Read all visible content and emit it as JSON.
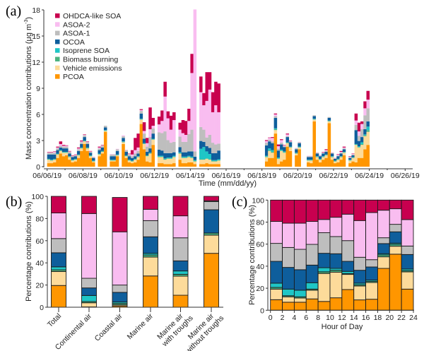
{
  "categories_colors": {
    "OHDCA-like SOA": "#C8004F",
    "ASOA-2": "#F9BDF0",
    "ASOA-1": "#BEBEBE",
    "OCOA": "#0E5E9C",
    "Isoprene SOA": "#1FC6C6",
    "Biomass burning": "#4DB380",
    "Vehicle emissions": "#FDDB9A",
    "PCOA": "#FF9600"
  },
  "chart_data": [
    {
      "panel": "(a)",
      "type": "area",
      "title": "",
      "xlabel": "Time (mm/dd/yy)",
      "ylabel": "Mass concentration contributions (μg m⁻³)",
      "ylim": [
        0,
        18
      ],
      "yticks": [
        "0",
        "3",
        "6",
        "9",
        "12",
        "15",
        "18"
      ],
      "xticks": [
        "06/06/19",
        "06/08/19",
        "06/10/19",
        "06/12/19",
        "06/14/19",
        "06/16/19",
        "06/18/19",
        "06/20/19",
        "06/22/19",
        "06/24/19",
        "06/26/19"
      ],
      "x_unit": "days since 06/06/19 00:00, 4-hour resolution, null = no data",
      "legend": [
        "OHDCA-like SOA",
        "ASOA-2",
        "ASOA-1",
        "OCOA",
        "Isoprene SOA",
        "Biomass burning",
        "Vehicle emissions",
        "PCOA"
      ],
      "legend_position": "top-left",
      "stack_order_bottom_to_top": [
        "PCOA",
        "Vehicle emissions",
        "Biomass burning",
        "Isoprene SOA",
        "OCOA",
        "ASOA-1",
        "ASOA-2",
        "OHDCA-like SOA"
      ],
      "x_start_day": 0,
      "x_step_days": 0.1667,
      "points": [
        [
          0.4,
          0.4,
          0.05,
          0.05,
          0.5,
          0.2,
          0.05,
          0.05
        ],
        [
          0.4,
          0.3,
          0.05,
          0.05,
          0.6,
          0.2,
          0.05,
          0.05
        ],
        [
          0.5,
          0.3,
          0.05,
          0.05,
          0.5,
          0.2,
          0.1,
          0.05
        ],
        [
          1.0,
          0.4,
          0.05,
          0.05,
          0.4,
          0.2,
          0.1,
          0.1
        ],
        [
          1.5,
          0.3,
          0.05,
          0.05,
          0.3,
          0.2,
          0.2,
          0.3
        ],
        [
          1.2,
          0.4,
          0.05,
          0.05,
          0.4,
          0.2,
          0.1,
          0.1
        ],
        [
          1.3,
          0.3,
          0.05,
          0.05,
          0.4,
          0.2,
          0.1,
          0.05
        ],
        [
          0.8,
          0.3,
          0.05,
          0.05,
          0.3,
          0.2,
          0.05,
          0.05
        ],
        [
          0.5,
          0.2,
          0.05,
          0.05,
          0.3,
          0.1,
          0.05,
          0.05
        ],
        [
          0.6,
          0.2,
          0.05,
          0.05,
          0.3,
          0.1,
          0.05,
          0.05
        ],
        [
          1.0,
          0.3,
          0.05,
          0.05,
          0.4,
          0.2,
          0.1,
          0.1
        ],
        [
          1.8,
          0.3,
          0.05,
          0.05,
          0.4,
          0.2,
          0.1,
          0.1
        ],
        [
          2.6,
          0.3,
          0.05,
          0.05,
          0.4,
          0.2,
          0.05,
          0.05
        ],
        [
          1.8,
          0.3,
          0.05,
          0.05,
          0.4,
          0.2,
          0.05,
          0.05
        ],
        [
          1.0,
          0.2,
          0.05,
          0.05,
          0.3,
          0.1,
          0.05,
          0.05
        ],
        [
          0.5,
          0.1,
          0.05,
          0.05,
          0.3,
          0.1,
          0.05,
          0.0
        ],
        null,
        [
          1.2,
          0.2,
          0.05,
          0.05,
          0.4,
          0.2,
          0.1,
          0.1
        ],
        [
          1.5,
          0.2,
          0.05,
          0.05,
          0.4,
          0.2,
          0.05,
          0.05
        ],
        [
          4.0,
          0.1,
          0.05,
          0.05,
          0.3,
          0.2,
          0.0,
          0.0
        ],
        null,
        [
          0.6,
          0.1,
          0.05,
          0.05,
          0.4,
          0.2,
          0.05,
          0.0
        ],
        [
          0.6,
          0.1,
          0.05,
          0.05,
          0.4,
          0.2,
          0.05,
          0.0
        ],
        [
          1.2,
          0.1,
          0.05,
          0.05,
          0.4,
          0.2,
          0.05,
          0.0
        ],
        null,
        [
          2.6,
          0.2,
          0.05,
          0.05,
          0.4,
          0.2,
          0.1,
          0.0
        ],
        [
          1.0,
          0.2,
          0.05,
          0.05,
          0.4,
          0.2,
          0.05,
          0.0
        ],
        [
          0.5,
          0.2,
          0.05,
          0.05,
          0.4,
          0.2,
          0.05,
          0.05
        ],
        [
          0.4,
          0.2,
          0.05,
          0.05,
          0.3,
          0.2,
          0.2,
          0.5
        ],
        [
          0.5,
          0.3,
          0.05,
          0.05,
          0.3,
          0.3,
          0.4,
          1.4
        ],
        [
          0.8,
          0.3,
          0.05,
          0.05,
          0.3,
          0.3,
          0.4,
          1.6
        ],
        [
          4.9,
          0.5,
          0.05,
          0.05,
          0.6,
          0.3,
          0.1,
          0.1
        ],
        [
          2.0,
          0.6,
          0.05,
          0.05,
          0.5,
          0.6,
          0.3,
          1.0
        ],
        [
          0.6,
          0.6,
          0.05,
          0.05,
          0.4,
          0.6,
          0.4,
          0.6
        ],
        [
          0.5,
          1.0,
          0.05,
          0.05,
          0.5,
          1.3,
          0.9,
          2.5
        ],
        [
          2.5,
          0.6,
          0.05,
          0.05,
          0.6,
          0.6,
          0.3,
          0.9
        ],
        null,
        [
          0.4,
          0.7,
          0.05,
          0.1,
          0.7,
          2.0,
          0.9,
          0.9
        ],
        [
          0.4,
          0.7,
          0.05,
          0.1,
          0.6,
          2.0,
          1.4,
          1.2
        ],
        [
          0.3,
          0.5,
          0.05,
          0.1,
          0.6,
          2.5,
          4.0,
          1.7
        ],
        [
          0.3,
          0.6,
          0.05,
          0.1,
          0.5,
          1.5,
          2.5,
          0.8
        ],
        [
          0.3,
          0.6,
          0.05,
          0.1,
          0.5,
          1.2,
          1.5,
          1.6
        ],
        [
          0.4,
          0.7,
          0.05,
          0.1,
          0.4,
          1.2,
          2.5,
          0.9
        ],
        null,
        [
          0.8,
          0.7,
          0.05,
          0.1,
          0.6,
          1.2,
          0.8,
          0.8
        ],
        [
          0.4,
          0.6,
          0.05,
          0.1,
          0.5,
          1.2,
          1.0,
          1.5
        ],
        [
          0.4,
          0.6,
          0.05,
          0.1,
          0.5,
          1.2,
          0.8,
          1.6
        ],
        [
          0.5,
          0.6,
          0.05,
          0.1,
          0.5,
          2.0,
          1.5,
          1.4
        ],
        [
          0.5,
          0.5,
          0.05,
          0.1,
          0.6,
          2.5,
          6.5,
          2.2
        ],
        [
          0.3,
          0.3,
          0.05,
          0.1,
          0.4,
          0.6,
          16.3,
          0.0
        ],
        null,
        [
          0.3,
          0.5,
          0.05,
          1.2,
          0.9,
          1.6,
          4.0,
          1.8
        ],
        [
          0.3,
          0.5,
          0.05,
          1.4,
          0.6,
          1.4,
          2.8,
          1.4
        ],
        [
          0.4,
          0.5,
          0.05,
          0.8,
          0.6,
          1.0,
          4.2,
          3.3
        ],
        [
          0.3,
          0.5,
          0.05,
          0.6,
          0.7,
          1.5,
          5.2,
          2.0
        ],
        [
          0.3,
          0.3,
          0.05,
          0.1,
          0.8,
          1.2,
          3.5,
          2.3
        ],
        [
          0.3,
          0.3,
          0.05,
          0.1,
          0.8,
          1.0,
          4.5,
          2.7
        ],
        [
          0.3,
          0.4,
          0.05,
          0.1,
          1.0,
          0.8,
          3.6,
          3.3
        ],
        null,
        null,
        null,
        null,
        null,
        null,
        null,
        null,
        null,
        null,
        null,
        null,
        null,
        null,
        null,
        [
          0.6,
          0.5,
          0.05,
          0.1,
          1.2,
          0.3,
          0.2,
          0.1
        ],
        [
          1.0,
          0.8,
          0.1,
          0.2,
          0.8,
          0.2,
          0.2,
          0.05
        ],
        [
          1.0,
          0.6,
          0.1,
          0.2,
          0.8,
          0.2,
          0.4,
          0.1
        ],
        [
          3.8,
          0.4,
          0.1,
          0.1,
          1.2,
          0.2,
          0.2,
          0.1
        ],
        [
          0.3,
          0.6,
          0.05,
          0.1,
          0.8,
          0.2,
          0.3,
          0.2
        ],
        [
          0.6,
          1.2,
          0.05,
          0.1,
          0.6,
          0.2,
          0.3,
          0.1
        ],
        [
          0.8,
          0.8,
          0.05,
          0.1,
          0.5,
          0.1,
          0.1,
          0.05
        ],
        [
          2.3,
          0.4,
          0.05,
          0.05,
          0.6,
          0.1,
          0.2,
          0.1
        ],
        [
          1.8,
          0.4,
          0.05,
          0.05,
          0.5,
          0.1,
          0.05,
          0.05
        ],
        null,
        [
          1.3,
          0.2,
          0.05,
          0.05,
          0.4,
          0.1,
          0.05,
          0.0
        ],
        [
          2.0,
          0.2,
          0.05,
          0.05,
          0.4,
          0.1,
          0.05,
          0.0
        ],
        null,
        null,
        [
          0.5,
          0.2,
          0.05,
          0.05,
          0.3,
          0.1,
          0.05,
          0.0
        ],
        [
          0.4,
          0.3,
          0.05,
          0.05,
          0.3,
          0.1,
          0.05,
          0.0
        ],
        [
          5.2,
          0.2,
          0.05,
          0.05,
          0.3,
          0.1,
          0.0,
          0.0
        ],
        [
          0.8,
          0.3,
          0.05,
          0.05,
          0.3,
          0.1,
          0.05,
          0.0
        ],
        [
          0.5,
          0.3,
          0.05,
          0.05,
          0.3,
          0.1,
          0.05,
          0.0
        ],
        [
          0.8,
          0.3,
          0.05,
          0.05,
          0.3,
          0.1,
          0.05,
          0.05
        ],
        [
          1.0,
          0.3,
          0.05,
          0.05,
          0.3,
          0.1,
          0.1,
          0.1
        ],
        [
          5.0,
          0.2,
          0.05,
          0.05,
          0.3,
          0.1,
          0.0,
          0.0
        ],
        [
          0.8,
          0.3,
          0.05,
          0.05,
          0.3,
          0.1,
          0.05,
          0.0
        ],
        [
          0.4,
          0.2,
          0.05,
          0.05,
          0.2,
          0.1,
          0.05,
          0.0
        ],
        [
          0.5,
          0.3,
          0.05,
          0.05,
          0.3,
          0.1,
          0.1,
          0.05
        ],
        [
          0.8,
          0.3,
          0.05,
          0.05,
          0.3,
          0.1,
          0.1,
          0.1
        ],
        [
          1.3,
          0.3,
          0.05,
          0.05,
          0.3,
          0.1,
          0.1,
          0.1
        ],
        null,
        [
          0.4,
          0.3,
          0.05,
          0.05,
          0.2,
          0.1,
          0.05,
          0.05
        ],
        [
          0.6,
          0.4,
          0.05,
          0.05,
          0.2,
          0.1,
          0.05,
          0.05
        ],
        [
          0.5,
          2.0,
          0.05,
          0.05,
          1.6,
          0.6,
          0.5,
          0.8
        ],
        [
          1.0,
          1.2,
          0.05,
          0.1,
          0.6,
          0.6,
          0.5,
          1.0
        ],
        [
          1.0,
          1.5,
          0.1,
          0.2,
          0.6,
          0.9,
          0.6,
          0.3
        ],
        [
          2.0,
          1.5,
          0.1,
          0.1,
          0.6,
          1.6,
          0.8,
          0.8
        ],
        [
          2.5,
          1.5,
          0.2,
          0.4,
          0.6,
          1.5,
          1.0,
          1.0
        ]
      ]
    },
    {
      "panel": "(b)",
      "type": "bar",
      "stacked": true,
      "ylabel": "Percentage contributions (%)",
      "xlabel": "",
      "ylim": [
        0,
        100
      ],
      "yticks": [
        "0",
        "20",
        "40",
        "60",
        "80",
        "100"
      ],
      "categories": [
        "Total",
        "Continental air",
        "Coastal air",
        "Marine air",
        "Marine air with troughs",
        "Marine air without troughs"
      ],
      "series": [
        {
          "name": "PCOA",
          "values": [
            19.6,
            0.3,
            1.1,
            28.2,
            10.8,
            48.6
          ]
        },
        {
          "name": "Vehicle emissions",
          "values": [
            12.6,
            3.7,
            1.0,
            17.0,
            17.2,
            16.4
          ]
        },
        {
          "name": "Biomass burning",
          "values": [
            1.5,
            1.1,
            1.3,
            1.9,
            1.7,
            1.9
          ]
        },
        {
          "name": "Isoprene SOA",
          "values": [
            2.7,
            5.5,
            1.3,
            1.5,
            3.0,
            0.0
          ]
        },
        {
          "name": "OCOA",
          "values": [
            12.7,
            6.8,
            8.7,
            14.9,
            9.1,
            21.0
          ]
        },
        {
          "name": "ASOA-1",
          "values": [
            12.8,
            8.7,
            6.6,
            14.6,
            20.8,
            7.4
          ]
        },
        {
          "name": "ASOA-2",
          "values": [
            23.1,
            58.4,
            48.0,
            10.2,
            19.8,
            0.7
          ]
        },
        {
          "name": "OHDCA-like SOA",
          "values": [
            15.0,
            15.5,
            31.0,
            11.7,
            17.6,
            4.0
          ]
        }
      ]
    },
    {
      "panel": "(c)",
      "type": "bar",
      "stacked": true,
      "ylabel": "Percentage contributions (%)",
      "xlabel": "Hour of Day",
      "ylim": [
        0,
        100
      ],
      "xlim": [
        0,
        24
      ],
      "yticks": [
        "0",
        "20",
        "40",
        "60",
        "80",
        "100"
      ],
      "xticks": [
        "0",
        "2",
        "4",
        "6",
        "8",
        "10",
        "12",
        "14",
        "16",
        "18",
        "20",
        "22",
        "24"
      ],
      "categories": [
        "0-2",
        "2-4",
        "4-6",
        "6-8",
        "8-10",
        "10-12",
        "12-14",
        "14-16",
        "16-18",
        "18-20",
        "20-22",
        "22-24"
      ],
      "series": [
        {
          "name": "PCOA",
          "values": [
            9.6,
            7.3,
            7.3,
            10.3,
            8.0,
            11.3,
            18.8,
            9.4,
            10.0,
            38.0,
            50.9,
            19.2
          ]
        },
        {
          "name": "Vehicle emissions",
          "values": [
            9.6,
            4.9,
            3.8,
            7.9,
            25.4,
            23.3,
            13.7,
            12.6,
            15.2,
            10.5,
            7.2,
            15.6
          ]
        },
        {
          "name": "Biomass burning",
          "values": [
            1.5,
            1.0,
            1.1,
            1.0,
            1.5,
            1.7,
            0.8,
            1.1,
            1.1,
            1.7,
            1.7,
            1.1
          ]
        },
        {
          "name": "Isoprene SOA",
          "values": [
            3.9,
            6.0,
            6.0,
            5.8,
            3.7,
            1.7,
            2.0,
            1.5,
            1.1,
            1.1,
            1.1,
            1.5
          ]
        },
        {
          "name": "OCOA",
          "values": [
            19.8,
            19.7,
            18.6,
            16.0,
            13.1,
            13.3,
            9.1,
            11.7,
            11.9,
            9.2,
            10.3,
            13.2
          ]
        },
        {
          "name": "ASOA-1",
          "values": [
            16.3,
            18.1,
            18.5,
            18.8,
            18.7,
            15.6,
            18.8,
            11.8,
            6.6,
            5.3,
            6.8,
            7.7
          ]
        },
        {
          "name": "ASOA-2",
          "values": [
            19.9,
            22.0,
            23.7,
            20.8,
            12.0,
            17.5,
            24.0,
            33.3,
            42.8,
            25.0,
            14.1,
            24.0
          ]
        },
        {
          "name": "OHDCA-like SOA",
          "values": [
            19.4,
            21.0,
            21.0,
            19.4,
            17.6,
            15.6,
            12.8,
            18.6,
            11.3,
            9.2,
            7.9,
            17.7
          ]
        }
      ]
    }
  ],
  "panels": {
    "a": {
      "label": "(a)",
      "xlabel": "Time (mm/dd/yy)",
      "ylabel_main": "Mass concentration contributions (μg m",
      "ylabel_sup": "-3",
      "ylabel_end": ")"
    },
    "b": {
      "label": "(b)",
      "ylabel": "Percentage contributions (%)"
    },
    "c": {
      "label": "(c)",
      "ylabel": "Percentage contributions (%)",
      "xlabel": "Hour of Day"
    }
  },
  "legend": {
    "items": [
      {
        "label": "OHDCA-like SOA",
        "color": "#C8004F"
      },
      {
        "label": "ASOA-2",
        "color": "#F9BDF0"
      },
      {
        "label": "ASOA-1",
        "color": "#BEBEBE"
      },
      {
        "label": "OCOA",
        "color": "#0E5E9C"
      },
      {
        "label": "Isoprene SOA",
        "color": "#1FC6C6"
      },
      {
        "label": "Biomass burning",
        "color": "#4DB380"
      },
      {
        "label": "Vehicle emissions",
        "color": "#FDDB9A"
      },
      {
        "label": "PCOA",
        "color": "#FF9600"
      }
    ]
  }
}
